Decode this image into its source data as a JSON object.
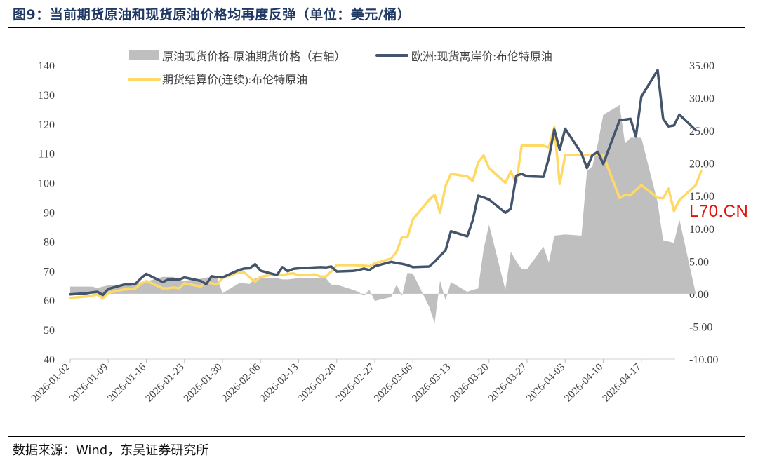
{
  "figure_title": "图9：当前期货原油和现货原油价格均再度反弹（单位：美元/桶）",
  "source_note": "数据来源：Wind，东吴证券研究所",
  "watermark": "L70.CN",
  "colors": {
    "spread": "#bfbfbf",
    "spot": "#44546a",
    "futures": "#ffd966",
    "title": "#1f3864"
  },
  "chart_data": {
    "type": "line",
    "title": "",
    "xlabel": "",
    "ylabel": "",
    "legend_position": "top",
    "grid": false,
    "y_left": {
      "min": 40,
      "max": 140,
      "step": 10,
      "ticks": [
        "40",
        "50",
        "60",
        "70",
        "80",
        "90",
        "100",
        "110",
        "120",
        "130",
        "140"
      ]
    },
    "y_right": {
      "min": -10,
      "max": 35,
      "step": 5,
      "ticks": [
        "-10.00",
        "-5.00",
        "0.00",
        "5.00",
        "10.00",
        "15.00",
        "20.00",
        "25.00",
        "30.00",
        "35.00"
      ]
    },
    "x_tick_labels": [
      "2026-01-02",
      "2026-01-09",
      "2026-01-16",
      "2026-01-23",
      "2026-01-30",
      "2026-02-06",
      "2026-02-13",
      "2026-02-20",
      "2026-02-27",
      "2026-03-06",
      "2026-03-13",
      "2026-03-20",
      "2026-03-27",
      "2026-04-03",
      "2026-04-10",
      "2026-04-17"
    ],
    "series": [
      {
        "name": "原油现货价格-原油期货价格（右轴）",
        "kind": "area",
        "axis": "right",
        "points": [
          [
            "2026-01-02",
            1.1
          ],
          [
            "2026-01-05",
            1.1
          ],
          [
            "2026-01-06",
            1.1
          ],
          [
            "2026-01-07",
            0.9
          ],
          [
            "2026-01-08",
            1.1
          ],
          [
            "2026-01-09",
            1.3
          ],
          [
            "2026-01-12",
            1.3
          ],
          [
            "2026-01-13",
            1.3
          ],
          [
            "2026-01-14",
            1.4
          ],
          [
            "2026-01-15",
            1.8
          ],
          [
            "2026-01-16",
            1.9
          ],
          [
            "2026-01-19",
            2.6
          ],
          [
            "2026-01-20",
            2.6
          ],
          [
            "2026-01-21",
            2.6
          ],
          [
            "2026-01-22",
            2.0
          ],
          [
            "2026-01-23",
            2.0
          ],
          [
            "2026-01-26",
            2.3
          ],
          [
            "2026-01-27",
            2.5
          ],
          [
            "2026-01-28",
            2.5
          ],
          [
            "2026-01-29",
            2.5
          ],
          [
            "2026-01-30",
            0.1
          ],
          [
            "2026-02-02",
            1.6
          ],
          [
            "2026-02-03",
            1.6
          ],
          [
            "2026-02-04",
            1.5
          ],
          [
            "2026-02-05",
            2.4
          ],
          [
            "2026-02-06",
            2.4
          ],
          [
            "2026-02-09",
            2.4
          ],
          [
            "2026-02-10",
            2.2
          ],
          [
            "2026-02-11",
            2.2
          ],
          [
            "2026-02-12",
            2.3
          ],
          [
            "2026-02-13",
            2.4
          ],
          [
            "2026-02-16",
            2.4
          ],
          [
            "2026-02-17",
            2.4
          ],
          [
            "2026-02-18",
            2.4
          ],
          [
            "2026-02-19",
            1.4
          ],
          [
            "2026-02-20",
            1.4
          ],
          [
            "2026-02-23",
            0.6
          ],
          [
            "2026-02-24",
            0.3
          ],
          [
            "2026-02-25",
            -0.3
          ],
          [
            "2026-02-26",
            0.6
          ],
          [
            "2026-02-27",
            -1.1
          ],
          [
            "2026-03-02",
            -0.5
          ],
          [
            "2026-03-03",
            1.4
          ],
          [
            "2026-03-04",
            -0.3
          ],
          [
            "2026-03-05",
            3.2
          ],
          [
            "2026-03-06",
            3.1
          ],
          [
            "2026-03-09",
            -2.0
          ],
          [
            "2026-03-10",
            -4.5
          ],
          [
            "2026-03-11",
            2.0
          ],
          [
            "2026-03-12",
            -1.0
          ],
          [
            "2026-03-13",
            1.8
          ],
          [
            "2026-03-16",
            0.3
          ],
          [
            "2026-03-17",
            0.6
          ],
          [
            "2026-03-18",
            0.8
          ],
          [
            "2026-03-19",
            6.8
          ],
          [
            "2026-03-20",
            10.6
          ],
          [
            "2026-03-23",
            0.6
          ],
          [
            "2026-03-24",
            6.4
          ],
          [
            "2026-03-25",
            5.0
          ],
          [
            "2026-03-26",
            3.8
          ],
          [
            "2026-03-27",
            3.8
          ],
          [
            "2026-03-30",
            7.2
          ],
          [
            "2026-03-31",
            4.8
          ],
          [
            "2026-04-01",
            8.9
          ],
          [
            "2026-04-02",
            9.0
          ],
          [
            "2026-04-03",
            9.1
          ],
          [
            "2026-04-06",
            8.9
          ],
          [
            "2026-04-07",
            18.8
          ],
          [
            "2026-04-08",
            19.5
          ],
          [
            "2026-04-09",
            23.0
          ],
          [
            "2026-04-10",
            27.4
          ],
          [
            "2026-04-13",
            28.9
          ],
          [
            "2026-04-14",
            23.0
          ],
          [
            "2026-04-15",
            23.9
          ],
          [
            "2026-04-16",
            23.9
          ],
          [
            "2026-04-17",
            23.9
          ],
          [
            "2026-04-20",
            14.0
          ],
          [
            "2026-04-21",
            8.2
          ],
          [
            "2026-04-22",
            8.0
          ],
          [
            "2026-04-23",
            7.8
          ],
          [
            "2026-04-24",
            11.4
          ],
          [
            "2026-04-27",
            0.0
          ]
        ]
      },
      {
        "name": "欧洲:现货离岸价:布伦特原油",
        "kind": "line",
        "axis": "left",
        "points": [
          [
            "2026-01-02",
            62.0
          ],
          [
            "2026-01-05",
            62.4
          ],
          [
            "2026-01-06",
            62.7
          ],
          [
            "2026-01-07",
            62.9
          ],
          [
            "2026-01-08",
            61.8
          ],
          [
            "2026-01-09",
            63.9
          ],
          [
            "2026-01-12",
            65.4
          ],
          [
            "2026-01-13",
            65.4
          ],
          [
            "2026-01-14",
            65.6
          ],
          [
            "2026-01-15",
            67.5
          ],
          [
            "2026-01-16",
            69.0
          ],
          [
            "2026-01-19",
            66.2
          ],
          [
            "2026-01-20",
            67.1
          ],
          [
            "2026-01-21",
            67.1
          ],
          [
            "2026-01-22",
            67.0
          ],
          [
            "2026-01-23",
            67.8
          ],
          [
            "2026-01-26",
            66.6
          ],
          [
            "2026-01-27",
            65.5
          ],
          [
            "2026-01-28",
            68.2
          ],
          [
            "2026-01-29",
            67.9
          ],
          [
            "2026-01-30",
            67.8
          ],
          [
            "2026-02-02",
            70.3
          ],
          [
            "2026-02-03",
            70.8
          ],
          [
            "2026-02-04",
            70.9
          ],
          [
            "2026-02-05",
            72.3
          ],
          [
            "2026-02-06",
            70.1
          ],
          [
            "2026-02-09",
            68.6
          ],
          [
            "2026-02-10",
            71.3
          ],
          [
            "2026-02-11",
            69.9
          ],
          [
            "2026-02-12",
            70.7
          ],
          [
            "2026-02-13",
            70.9
          ],
          [
            "2026-02-16",
            71.2
          ],
          [
            "2026-02-17",
            71.3
          ],
          [
            "2026-02-18",
            71.2
          ],
          [
            "2026-02-19",
            71.5
          ],
          [
            "2026-02-20",
            69.8
          ],
          [
            "2026-02-23",
            70.0
          ],
          [
            "2026-02-24",
            70.3
          ],
          [
            "2026-02-25",
            70.8
          ],
          [
            "2026-02-26",
            70.3
          ],
          [
            "2026-02-27",
            71.6
          ],
          [
            "2026-03-02",
            73.1
          ],
          [
            "2026-03-03",
            72.7
          ],
          [
            "2026-03-04",
            72.4
          ],
          [
            "2026-03-05",
            72.0
          ],
          [
            "2026-03-06",
            71.3
          ],
          [
            "2026-03-09",
            71.5
          ],
          [
            "2026-03-10",
            73.2
          ],
          [
            "2026-03-11",
            75.1
          ],
          [
            "2026-03-12",
            77.0
          ],
          [
            "2026-03-13",
            83.5
          ],
          [
            "2026-03-16",
            81.8
          ],
          [
            "2026-03-17",
            87.2
          ],
          [
            "2026-03-18",
            95.6
          ],
          [
            "2026-03-19",
            95.0
          ],
          [
            "2026-03-20",
            94.3
          ],
          [
            "2026-03-23",
            89.8
          ],
          [
            "2026-03-24",
            91.2
          ],
          [
            "2026-03-25",
            102.4
          ],
          [
            "2026-03-26",
            103.0
          ],
          [
            "2026-03-27",
            102.2
          ],
          [
            "2026-03-30",
            102.0
          ],
          [
            "2026-03-31",
            108.4
          ],
          [
            "2026-04-01",
            118.1
          ],
          [
            "2026-04-02",
            111.2
          ],
          [
            "2026-04-03",
            118.4
          ],
          [
            "2026-04-06",
            110.0
          ],
          [
            "2026-04-07",
            105.0
          ],
          [
            "2026-04-08",
            109.4
          ],
          [
            "2026-04-09",
            110.5
          ],
          [
            "2026-04-10",
            106.4
          ],
          [
            "2026-04-13",
            121.3
          ],
          [
            "2026-04-14",
            121.5
          ],
          [
            "2026-04-15",
            121.8
          ],
          [
            "2026-04-16",
            115.7
          ],
          [
            "2026-04-17",
            129.3
          ],
          [
            "2026-04-20",
            138.3
          ],
          [
            "2026-04-21",
            121.8
          ],
          [
            "2026-04-22",
            119.2
          ],
          [
            "2026-04-23",
            119.5
          ],
          [
            "2026-04-24",
            123.2
          ],
          [
            "2026-04-27",
            117.9
          ]
        ]
      },
      {
        "name": "期货结算价(连续):布伦特原油",
        "kind": "line",
        "axis": "left",
        "points": [
          [
            "2026-01-02",
            60.8
          ],
          [
            "2026-01-05",
            61.3
          ],
          [
            "2026-01-06",
            61.6
          ],
          [
            "2026-01-07",
            62.0
          ],
          [
            "2026-01-08",
            60.6
          ],
          [
            "2026-01-09",
            62.6
          ],
          [
            "2026-01-12",
            63.7
          ],
          [
            "2026-01-13",
            63.8
          ],
          [
            "2026-01-14",
            64.1
          ],
          [
            "2026-01-15",
            65.6
          ],
          [
            "2026-01-16",
            66.6
          ],
          [
            "2026-01-19",
            64.1
          ],
          [
            "2026-01-20",
            64.1
          ],
          [
            "2026-01-21",
            64.4
          ],
          [
            "2026-01-22",
            64.1
          ],
          [
            "2026-01-23",
            65.8
          ],
          [
            "2026-01-26",
            64.7
          ],
          [
            "2026-01-27",
            66.2
          ],
          [
            "2026-01-28",
            65.8
          ],
          [
            "2026-01-29",
            65.4
          ],
          [
            "2026-01-30",
            67.6
          ],
          [
            "2026-02-02",
            69.5
          ],
          [
            "2026-02-03",
            69.5
          ],
          [
            "2026-02-04",
            67.8
          ],
          [
            "2026-02-05",
            66.4
          ],
          [
            "2026-02-06",
            68.0
          ],
          [
            "2026-02-09",
            69.0
          ],
          [
            "2026-02-10",
            68.5
          ],
          [
            "2026-02-11",
            69.0
          ],
          [
            "2026-02-12",
            69.2
          ],
          [
            "2026-02-13",
            68.5
          ],
          [
            "2026-02-16",
            68.8
          ],
          [
            "2026-02-17",
            68.1
          ],
          [
            "2026-02-18",
            68.1
          ],
          [
            "2026-02-19",
            69.8
          ],
          [
            "2026-02-20",
            72.0
          ],
          [
            "2026-02-23",
            72.0
          ],
          [
            "2026-02-24",
            71.9
          ],
          [
            "2026-02-25",
            71.8
          ],
          [
            "2026-02-26",
            71.6
          ],
          [
            "2026-02-27",
            72.6
          ],
          [
            "2026-03-02",
            74.2
          ],
          [
            "2026-03-03",
            76.5
          ],
          [
            "2026-03-04",
            81.6
          ],
          [
            "2026-03-05",
            81.4
          ],
          [
            "2026-03-06",
            87.6
          ],
          [
            "2026-03-09",
            94.2
          ],
          [
            "2026-03-10",
            95.9
          ],
          [
            "2026-03-11",
            89.8
          ],
          [
            "2026-03-12",
            98.9
          ],
          [
            "2026-03-13",
            103.0
          ],
          [
            "2026-03-16",
            102.2
          ],
          [
            "2026-03-17",
            100.6
          ],
          [
            "2026-03-18",
            107.0
          ],
          [
            "2026-03-19",
            109.3
          ],
          [
            "2026-03-20",
            105.0
          ],
          [
            "2026-03-23",
            100.0
          ],
          [
            "2026-03-24",
            103.8
          ],
          [
            "2026-03-25",
            99.9
          ],
          [
            "2026-03-26",
            112.6
          ],
          [
            "2026-03-27",
            112.6
          ],
          [
            "2026-03-30",
            112.6
          ],
          [
            "2026-03-31",
            112.0
          ],
          [
            "2026-04-01",
            118.9
          ],
          [
            "2026-04-02",
            99.6
          ],
          [
            "2026-04-03",
            109.4
          ],
          [
            "2026-04-06",
            109.4
          ],
          [
            "2026-04-07",
            109.5
          ],
          [
            "2026-04-08",
            109.5
          ],
          [
            "2026-04-09",
            109.5
          ],
          [
            "2026-04-10",
            109.4
          ],
          [
            "2026-04-13",
            94.8
          ],
          [
            "2026-04-14",
            95.9
          ],
          [
            "2026-04-15",
            95.7
          ],
          [
            "2026-04-16",
            97.5
          ],
          [
            "2026-04-17",
            99.2
          ],
          [
            "2026-04-20",
            94.9
          ],
          [
            "2026-04-21",
            94.7
          ],
          [
            "2026-04-22",
            98.0
          ],
          [
            "2026-04-23",
            90.4
          ],
          [
            "2026-04-24",
            94.1
          ],
          [
            "2026-04-27",
            99.2
          ],
          [
            "2026-04-28",
            104.0
          ]
        ]
      }
    ]
  }
}
